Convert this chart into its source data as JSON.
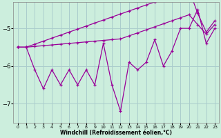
{
  "xlabel": "Windchill (Refroidissement éolien,°C)",
  "background_color": "#cceedd",
  "grid_color": "#aacccc",
  "line_color": "#990099",
  "x_values": [
    0,
    1,
    2,
    3,
    4,
    5,
    6,
    7,
    8,
    9,
    10,
    11,
    12,
    13,
    14,
    15,
    16,
    17,
    18,
    19,
    20,
    21,
    22,
    23
  ],
  "y_main": [
    -5.5,
    -5.5,
    -6.1,
    -6.6,
    -6.1,
    -6.5,
    -6.1,
    -6.5,
    -6.1,
    -6.5,
    -5.4,
    -6.5,
    -7.2,
    -5.9,
    -6.1,
    -5.9,
    -5.3,
    -6.0,
    -5.6,
    -5.0,
    -5.0,
    -4.5,
    -5.4,
    -5.0
  ],
  "y_line1": [
    -5.5,
    -5.5,
    -5.42,
    -5.34,
    -5.26,
    -5.18,
    -5.1,
    -5.02,
    -4.94,
    -4.86,
    -4.78,
    -4.7,
    -4.62,
    -4.54,
    -4.46,
    -4.38,
    -4.3,
    -4.22,
    -4.14,
    -4.06,
    -3.98,
    -4.6,
    -5.1,
    -4.8
  ],
  "y_line2": [
    -5.5,
    -5.5,
    -5.48,
    -5.46,
    -5.44,
    -5.42,
    -5.4,
    -5.38,
    -5.36,
    -5.34,
    -5.32,
    -5.3,
    -5.28,
    -5.2,
    -5.12,
    -5.04,
    -4.96,
    -4.88,
    -4.8,
    -4.72,
    -4.64,
    -4.9,
    -5.15,
    -4.9
  ],
  "ylim": [
    -7.5,
    -4.3
  ],
  "xlim": [
    -0.5,
    23.5
  ],
  "yticks": [
    -7,
    -6,
    -5
  ],
  "xticks": [
    0,
    1,
    2,
    3,
    4,
    5,
    6,
    7,
    8,
    9,
    10,
    11,
    12,
    13,
    14,
    15,
    16,
    17,
    18,
    19,
    20,
    21,
    22,
    23
  ]
}
